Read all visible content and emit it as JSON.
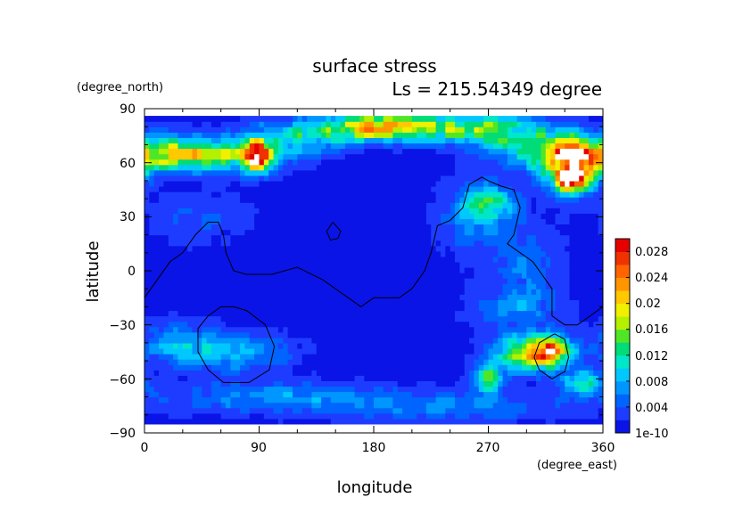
{
  "chart_data": {
    "type": "heatmap",
    "title": "surface stress",
    "subtitle": "Ls = 215.54349 degree",
    "xlabel": "longitude",
    "ylabel": "latitude",
    "x_units": "(degree_east)",
    "y_units": "(degree_north)",
    "xlim": [
      0,
      360
    ],
    "ylim": [
      -90,
      90
    ],
    "x_ticks": [
      "0",
      "90",
      "180",
      "270",
      "360"
    ],
    "y_ticks": [
      "90",
      "60",
      "30",
      "0",
      "−30",
      "−60",
      "−90"
    ],
    "colorbar": {
      "min": 0,
      "max": 0.03,
      "labels": [
        "0.028",
        "0.024",
        "0.02",
        "0.016",
        "0.012",
        "0.008",
        "0.004",
        "1e-10"
      ],
      "colors": [
        "#0a14e6",
        "#1e3cff",
        "#0064ff",
        "#0096ff",
        "#00c8ff",
        "#00e6c8",
        "#00dc78",
        "#50e628",
        "#b4f000",
        "#f0f000",
        "#ffc800",
        "#ff9600",
        "#ff6400",
        "#f03200",
        "#e60000"
      ]
    },
    "background_value": 0.001,
    "features": [
      {
        "lon": 15,
        "lat": 65,
        "sx": 25,
        "sy": 6,
        "value": 0.012
      },
      {
        "lon": 60,
        "lat": 65,
        "sx": 30,
        "sy": 7,
        "value": 0.012
      },
      {
        "lon": 88,
        "lat": 64,
        "sx": 8,
        "sy": 6,
        "value": 0.022
      },
      {
        "lon": 120,
        "lat": 74,
        "sx": 30,
        "sy": 7,
        "value": 0.008
      },
      {
        "lon": 180,
        "lat": 80,
        "sx": 30,
        "sy": 5,
        "value": 0.014
      },
      {
        "lon": 220,
        "lat": 80,
        "sx": 45,
        "sy": 5,
        "value": 0.01
      },
      {
        "lon": 270,
        "lat": 78,
        "sx": 30,
        "sy": 6,
        "value": 0.008
      },
      {
        "lon": 320,
        "lat": 68,
        "sx": 30,
        "sy": 8,
        "value": 0.012
      },
      {
        "lon": 335,
        "lat": 56,
        "sx": 14,
        "sy": 9,
        "value": 0.022
      },
      {
        "lon": 336,
        "lat": 52,
        "sx": 6,
        "sy": 4,
        "value": 0.02
      },
      {
        "lon": 270,
        "lat": 38,
        "sx": 14,
        "sy": 6,
        "value": 0.01
      },
      {
        "lon": 260,
        "lat": 30,
        "sx": 20,
        "sy": 15,
        "value": 0.005
      },
      {
        "lon": 300,
        "lat": 5,
        "sx": 20,
        "sy": 15,
        "value": 0.004
      },
      {
        "lon": 40,
        "lat": 30,
        "sx": 30,
        "sy": 10,
        "value": 0.003
      },
      {
        "lon": 25,
        "lat": -40,
        "sx": 20,
        "sy": 8,
        "value": 0.006
      },
      {
        "lon": 70,
        "lat": -45,
        "sx": 30,
        "sy": 8,
        "value": 0.007
      },
      {
        "lon": 100,
        "lat": -70,
        "sx": 60,
        "sy": 6,
        "value": 0.006
      },
      {
        "lon": 240,
        "lat": -75,
        "sx": 60,
        "sy": 6,
        "value": 0.005
      },
      {
        "lon": 305,
        "lat": -45,
        "sx": 20,
        "sy": 7,
        "value": 0.018
      },
      {
        "lon": 320,
        "lat": -45,
        "sx": 10,
        "sy": 5,
        "value": 0.012
      },
      {
        "lon": 270,
        "lat": -60,
        "sx": 8,
        "sy": 5,
        "value": 0.016
      },
      {
        "lon": 345,
        "lat": -62,
        "sx": 10,
        "sy": 5,
        "value": 0.012
      },
      {
        "lon": 290,
        "lat": -20,
        "sx": 25,
        "sy": 8,
        "value": 0.005
      }
    ],
    "contours": [
      [
        [
          0,
          -15
        ],
        [
          10,
          -5
        ],
        [
          20,
          5
        ],
        [
          30,
          10
        ],
        [
          40,
          20
        ],
        [
          50,
          27
        ],
        [
          58,
          27
        ],
        [
          62,
          20
        ],
        [
          64,
          10
        ],
        [
          70,
          0
        ],
        [
          80,
          -2
        ],
        [
          100,
          -2
        ],
        [
          110,
          0
        ],
        [
          120,
          2
        ],
        [
          140,
          -5
        ],
        [
          160,
          -15
        ],
        [
          170,
          -20
        ],
        [
          180,
          -15
        ],
        [
          200,
          -15
        ],
        [
          210,
          -10
        ],
        [
          220,
          0
        ],
        [
          225,
          10
        ],
        [
          230,
          25
        ],
        [
          240,
          28
        ],
        [
          250,
          35
        ],
        [
          255,
          48
        ],
        [
          265,
          52
        ],
        [
          270,
          50
        ],
        [
          280,
          47
        ],
        [
          290,
          45
        ],
        [
          295,
          35
        ],
        [
          290,
          20
        ],
        [
          285,
          15
        ],
        [
          295,
          10
        ],
        [
          305,
          5
        ],
        [
          315,
          -5
        ],
        [
          320,
          -10
        ],
        [
          320,
          -25
        ],
        [
          330,
          -30
        ],
        [
          340,
          -30
        ],
        [
          350,
          -25
        ],
        [
          360,
          -20
        ]
      ],
      [
        [
          70,
          -20
        ],
        [
          80,
          -22
        ],
        [
          95,
          -30
        ],
        [
          102,
          -42
        ],
        [
          98,
          -55
        ],
        [
          82,
          -62
        ],
        [
          62,
          -62
        ],
        [
          50,
          -55
        ],
        [
          42,
          -45
        ],
        [
          42,
          -32
        ],
        [
          50,
          -25
        ],
        [
          60,
          -20
        ],
        [
          70,
          -20
        ]
      ],
      [
        [
          322,
          -35
        ],
        [
          330,
          -38
        ],
        [
          333,
          -48
        ],
        [
          330,
          -56
        ],
        [
          320,
          -60
        ],
        [
          310,
          -55
        ],
        [
          306,
          -48
        ],
        [
          310,
          -40
        ],
        [
          322,
          -35
        ]
      ],
      [
        [
          148,
          27
        ],
        [
          154,
          22
        ],
        [
          152,
          18
        ],
        [
          146,
          17
        ],
        [
          143,
          22
        ],
        [
          148,
          27
        ]
      ]
    ]
  }
}
